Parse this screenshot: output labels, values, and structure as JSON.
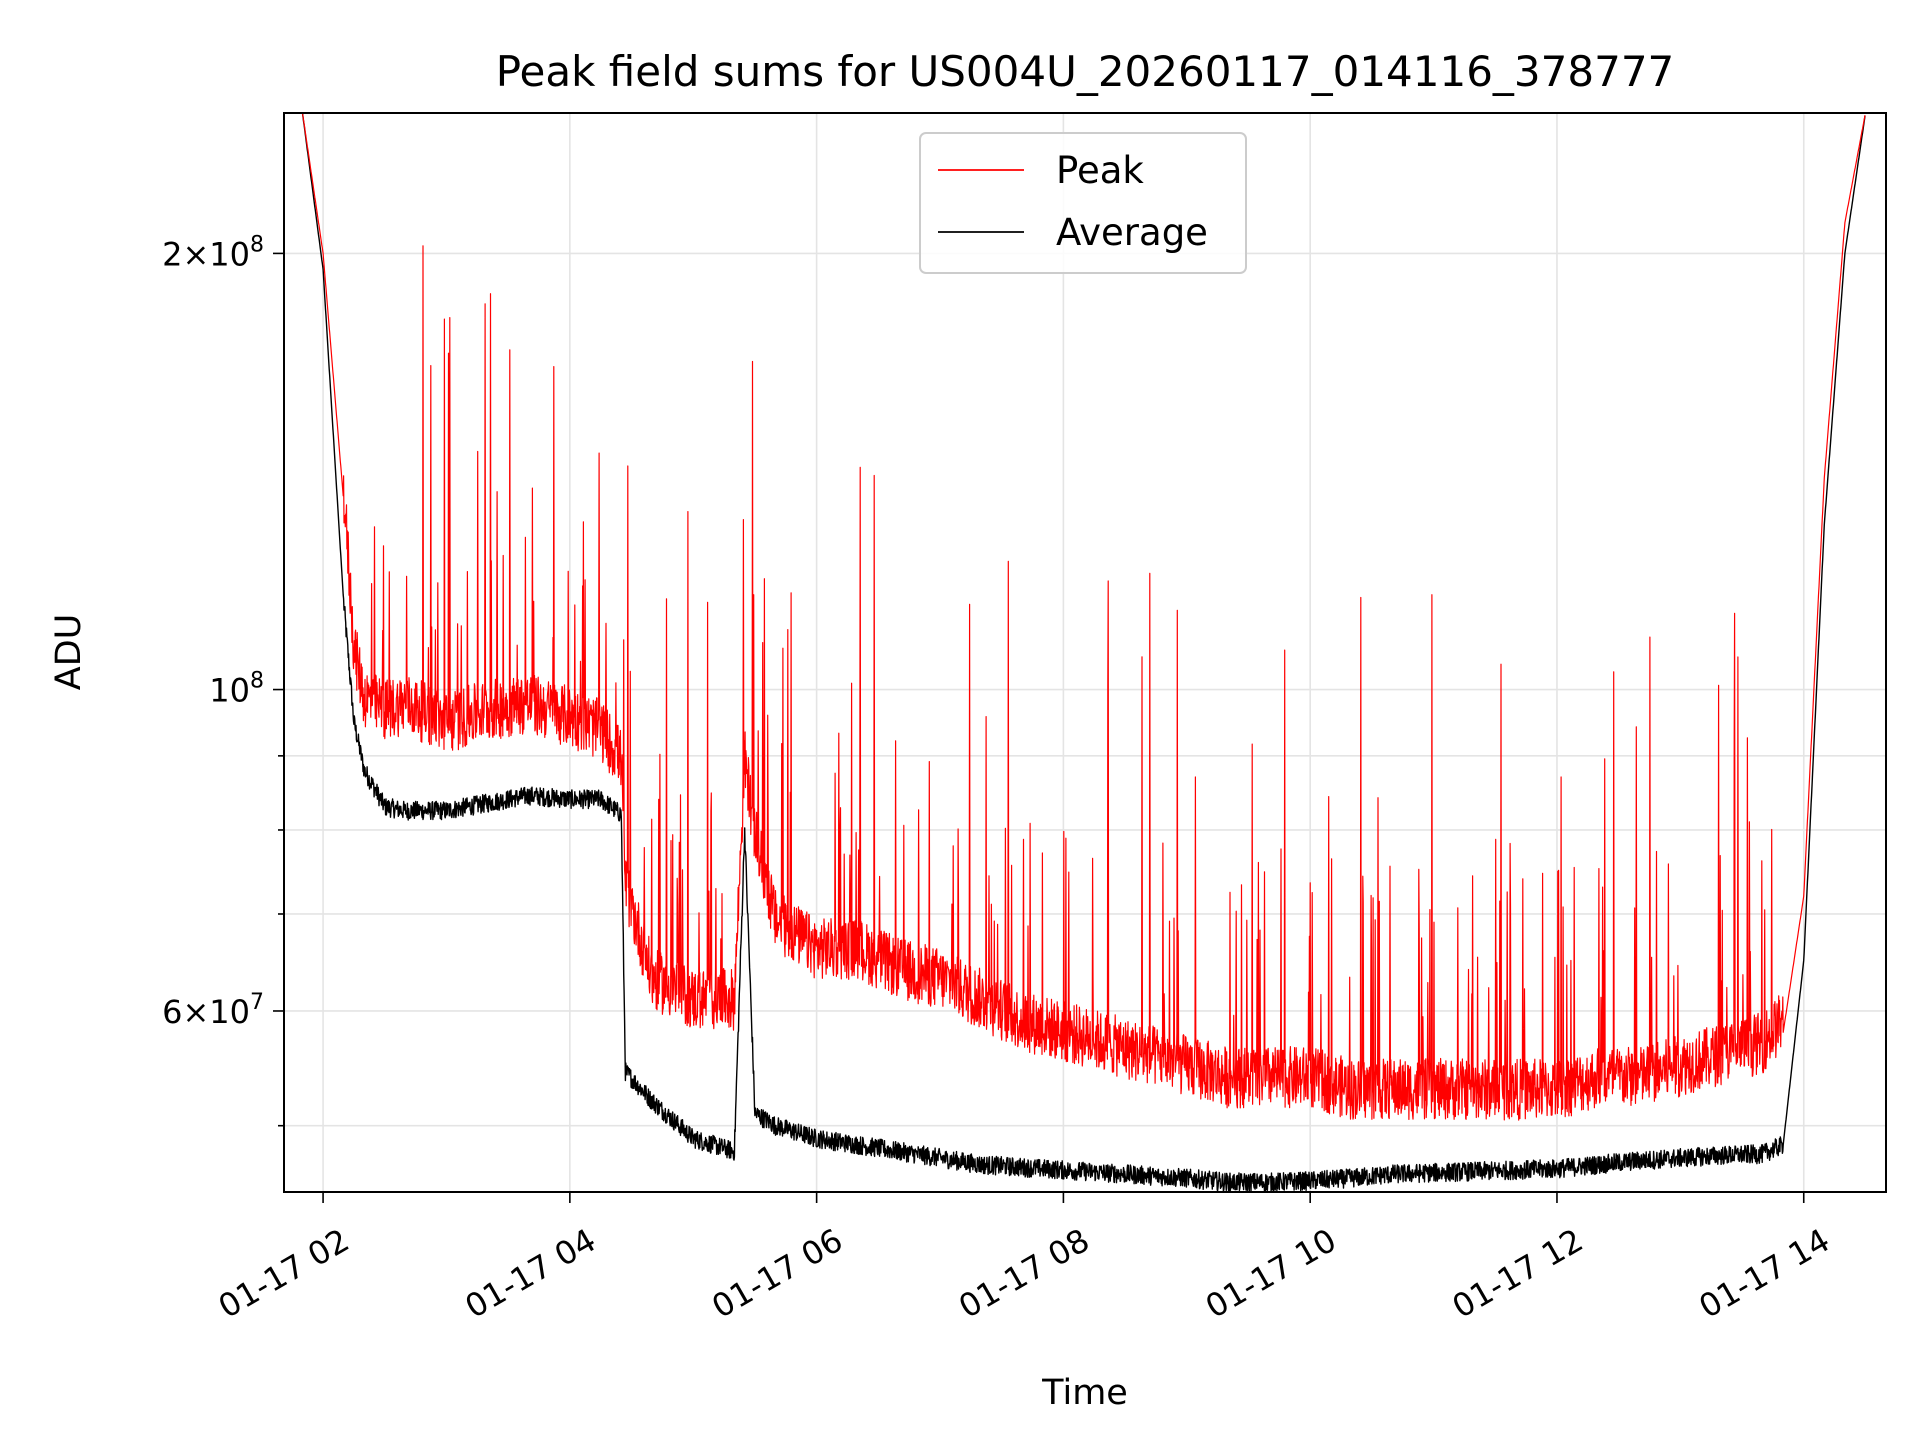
{
  "chart_data": {
    "type": "line",
    "title": "Peak field sums for US004U_20260117_014116_378777",
    "xlabel": "Time",
    "ylabel": "ADU",
    "yscale": "log",
    "xlim": [
      "01-17 01:41",
      "01-17 14:40"
    ],
    "ylim": [
      45000000,
      250000000
    ],
    "grid": true,
    "legend_position": "upper center",
    "x_ticks": [
      "01-17 02",
      "01-17 04",
      "01-17 06",
      "01-17 08",
      "01-17 10",
      "01-17 12",
      "01-17 14"
    ],
    "y_ticks_major": [
      {
        "value": 200000000,
        "mant": "2×10",
        "exp": "8"
      },
      {
        "value": 100000000,
        "mant": "10",
        "exp": "8"
      },
      {
        "value": 60000000,
        "mant": "6×10",
        "exp": "7"
      }
    ],
    "y_ticks_minor": [
      50000000,
      70000000,
      80000000,
      90000000
    ],
    "colors": {
      "Peak": "#ff0000",
      "Average": "#000000"
    },
    "series": [
      {
        "name": "Peak",
        "color": "#ff0000",
        "x": [
          "01-17 01:50",
          "01-17 02:00",
          "01-17 02:10",
          "01-17 02:15",
          "01-17 02:20",
          "01-17 02:30",
          "01-17 02:40",
          "01-17 03:00",
          "01-17 03:20",
          "01-17 03:40",
          "01-17 04:00",
          "01-17 04:15",
          "01-17 04:25",
          "01-17 04:27",
          "01-17 04:40",
          "01-17 05:00",
          "01-17 05:20",
          "01-17 05:25",
          "01-17 05:30",
          "01-17 05:40",
          "01-17 06:00",
          "01-17 06:20",
          "01-17 06:40",
          "01-17 07:00",
          "01-17 07:20",
          "01-17 07:40",
          "01-17 08:00",
          "01-17 08:20",
          "01-17 08:40",
          "01-17 09:00",
          "01-17 09:20",
          "01-17 09:40",
          "01-17 10:00",
          "01-17 10:20",
          "01-17 10:40",
          "01-17 11:00",
          "01-17 11:20",
          "01-17 11:40",
          "01-17 12:00",
          "01-17 12:20",
          "01-17 12:40",
          "01-17 13:00",
          "01-17 13:20",
          "01-17 13:40",
          "01-17 13:50",
          "01-17 14:00",
          "01-17 14:10",
          "01-17 14:20",
          "01-17 14:30"
        ],
        "values": [
          250000000,
          200000000,
          135000000,
          105000000,
          97000000,
          95000000,
          96000000,
          93000000,
          95000000,
          96000000,
          94000000,
          92000000,
          88000000,
          72000000,
          62000000,
          60000000,
          60000000,
          88000000,
          78000000,
          68000000,
          65000000,
          65000000,
          63000000,
          62000000,
          60000000,
          58000000,
          57000000,
          56000000,
          55000000,
          54000000,
          53000000,
          53000000,
          53000000,
          52000000,
          52000000,
          52000000,
          52000000,
          52000000,
          52000000,
          53000000,
          53000000,
          54000000,
          55000000,
          56000000,
          58000000,
          72000000,
          140000000,
          210000000,
          250000000
        ]
      },
      {
        "name": "Average",
        "color": "#000000",
        "x": [
          "01-17 01:50",
          "01-17 02:00",
          "01-17 02:10",
          "01-17 02:15",
          "01-17 02:20",
          "01-17 02:30",
          "01-17 02:40",
          "01-17 03:00",
          "01-17 03:20",
          "01-17 03:40",
          "01-17 04:00",
          "01-17 04:15",
          "01-17 04:25",
          "01-17 04:27",
          "01-17 04:40",
          "01-17 05:00",
          "01-17 05:20",
          "01-17 05:25",
          "01-17 05:30",
          "01-17 05:40",
          "01-17 06:00",
          "01-17 06:20",
          "01-17 06:40",
          "01-17 07:00",
          "01-17 07:20",
          "01-17 07:40",
          "01-17 08:00",
          "01-17 08:20",
          "01-17 08:40",
          "01-17 09:00",
          "01-17 09:20",
          "01-17 09:40",
          "01-17 10:00",
          "01-17 10:20",
          "01-17 10:40",
          "01-17 11:00",
          "01-17 11:20",
          "01-17 11:40",
          "01-17 12:00",
          "01-17 12:20",
          "01-17 12:40",
          "01-17 13:00",
          "01-17 13:20",
          "01-17 13:40",
          "01-17 13:50",
          "01-17 14:00",
          "01-17 14:10",
          "01-17 14:20",
          "01-17 14:30"
        ],
        "values": [
          250000000,
          195000000,
          115000000,
          95000000,
          88000000,
          83000000,
          82500000,
          82500000,
          83500000,
          84500000,
          84000000,
          84000000,
          82000000,
          54500000,
          52000000,
          49000000,
          48000000,
          80000000,
          51000000,
          50000000,
          49000000,
          48500000,
          48000000,
          47500000,
          47000000,
          46800000,
          46600000,
          46400000,
          46200000,
          46000000,
          45700000,
          45700000,
          45800000,
          46000000,
          46300000,
          46400000,
          46500000,
          46600000,
          46700000,
          47000000,
          47300000,
          47500000,
          47700000,
          47800000,
          48500000,
          65000000,
          130000000,
          200000000,
          250000000
        ]
      }
    ]
  }
}
